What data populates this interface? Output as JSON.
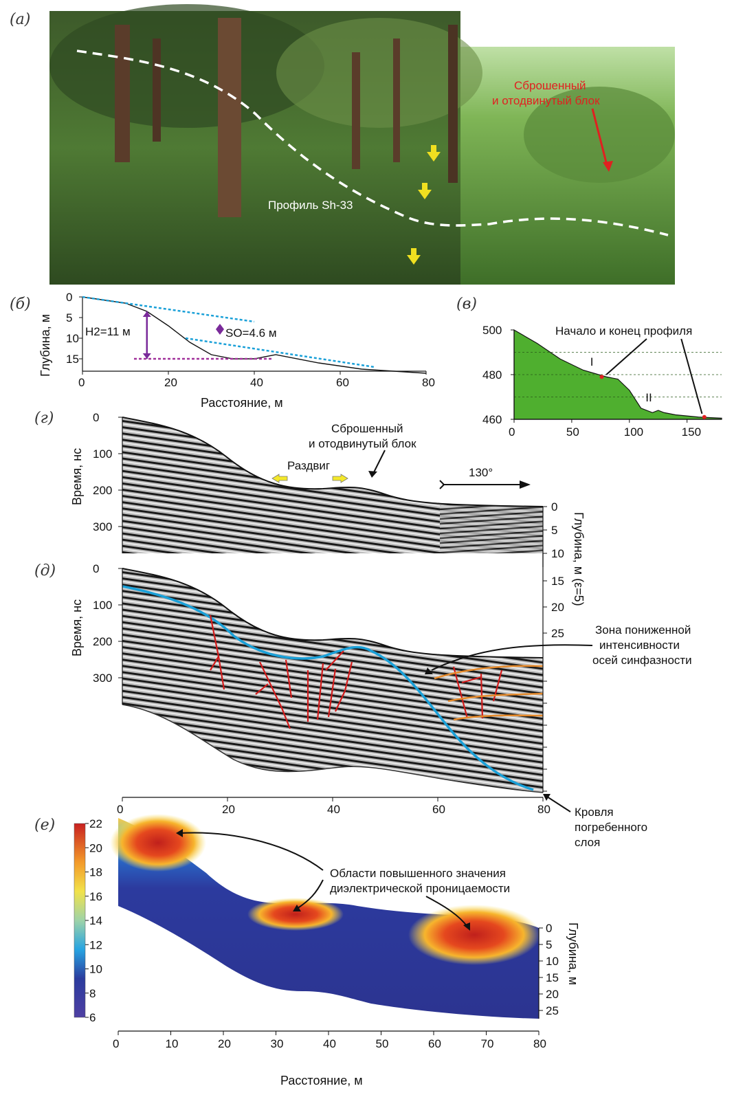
{
  "panels": {
    "a": {
      "label": "(а)",
      "profile_label": "Профиль Sh-33",
      "block_label": [
        "Сброшенный",
        "и отодвинутый блок"
      ]
    },
    "b": {
      "label": "(б)",
      "ylabel": "Глубина, м",
      "xlabel": "Расстояние, м",
      "h2_label": "H2=11 м",
      "so_label": "SO=4.6 м",
      "x_ticks": [
        "0",
        "20",
        "40",
        "60",
        "80"
      ],
      "y_ticks": [
        "0",
        "5",
        "10",
        "15"
      ]
    },
    "c": {
      "label": "(в)",
      "title": "Начало и конец профиля",
      "marker_1": "I",
      "marker_2": "II",
      "x_ticks": [
        "0",
        "50",
        "100",
        "150"
      ],
      "y_ticks": [
        "500",
        "480",
        "460"
      ]
    },
    "d": {
      "label": "(г)",
      "ylabel": "Время, нс",
      "block_label": [
        "Сброшенный",
        "и отодвинутый блок"
      ],
      "spread_label": "Раздвиг",
      "azimuth": "130°",
      "y_ticks": [
        "0",
        "100",
        "200",
        "300"
      ]
    },
    "e": {
      "label": "(д)",
      "ylabel": "Время, нс",
      "y_ticks": [
        "0",
        "100",
        "200",
        "300"
      ],
      "depth_label": "Глубина, м (ε=5)",
      "depth_ticks": [
        "0",
        "5",
        "10",
        "15",
        "20",
        "25"
      ],
      "zone_label": [
        "Зона пониженной",
        "интенсивности",
        "осей синфазности"
      ],
      "roof_label": [
        "Кровля",
        "погребенного",
        "слоя"
      ],
      "x_ticks": [
        "0",
        "20",
        "40",
        "60",
        "80"
      ]
    },
    "f": {
      "label": "(е)",
      "colorbar_ticks": [
        "22",
        "20",
        "18",
        "16",
        "14",
        "12",
        "10",
        "8",
        "6"
      ],
      "area_label": [
        "Области повышенного значения",
        "диэлектрической проницаемости"
      ],
      "depth_label": "Глубина, м",
      "depth_ticks": [
        "0",
        "5",
        "10",
        "15",
        "20",
        "25"
      ],
      "x_ticks": [
        "0",
        "10",
        "20",
        "30",
        "40",
        "50",
        "60",
        "70",
        "80"
      ],
      "xlabel": "Расстояние, м"
    }
  },
  "chart_data": [
    {
      "type": "line",
      "panel": "б",
      "xlabel": "Расстояние, м",
      "ylabel": "Глубина, м",
      "xlim": [
        0,
        80
      ],
      "ylim": [
        18,
        0
      ],
      "y_inverted": true,
      "series": [
        {
          "name": "",
          "x": [
            0,
            10,
            15,
            20,
            25,
            30,
            35,
            40,
            45,
            55,
            65,
            80
          ],
          "y": [
            0,
            1.5,
            3.5,
            7,
            11,
            14,
            15,
            15,
            14,
            16,
            17.5,
            18.5
          ]
        }
      ],
      "annotations": [
        "H2=11 м",
        "SO=4.6 м"
      ]
    },
    {
      "type": "area",
      "panel": "в",
      "title": "Начало и конец профиля",
      "xlim": [
        0,
        180
      ],
      "ylim": [
        460,
        500
      ],
      "series": [
        {
          "name": "",
          "x": [
            0,
            20,
            40,
            60,
            80,
            90,
            100,
            110,
            120,
            125,
            130,
            140,
            160,
            180
          ],
          "y": [
            500,
            494,
            487,
            482,
            479,
            478,
            473,
            465,
            463,
            464,
            463,
            462,
            461,
            460.5
          ]
        }
      ],
      "markers": [
        {
          "label": "I",
          "x": 76,
          "y": 479
        },
        {
          "label": "II",
          "x": 165,
          "y": 461
        }
      ]
    },
    {
      "type": "heatmap",
      "panel": "е",
      "xlabel": "Расстояние, м",
      "xlim": [
        0,
        80
      ],
      "colorbar": {
        "min": 6,
        "max": 22,
        "ticks": [
          6,
          8,
          10,
          12,
          14,
          16,
          18,
          20,
          22
        ]
      },
      "annotation": "Области повышенного значения диэлектрической проницаемости"
    }
  ]
}
